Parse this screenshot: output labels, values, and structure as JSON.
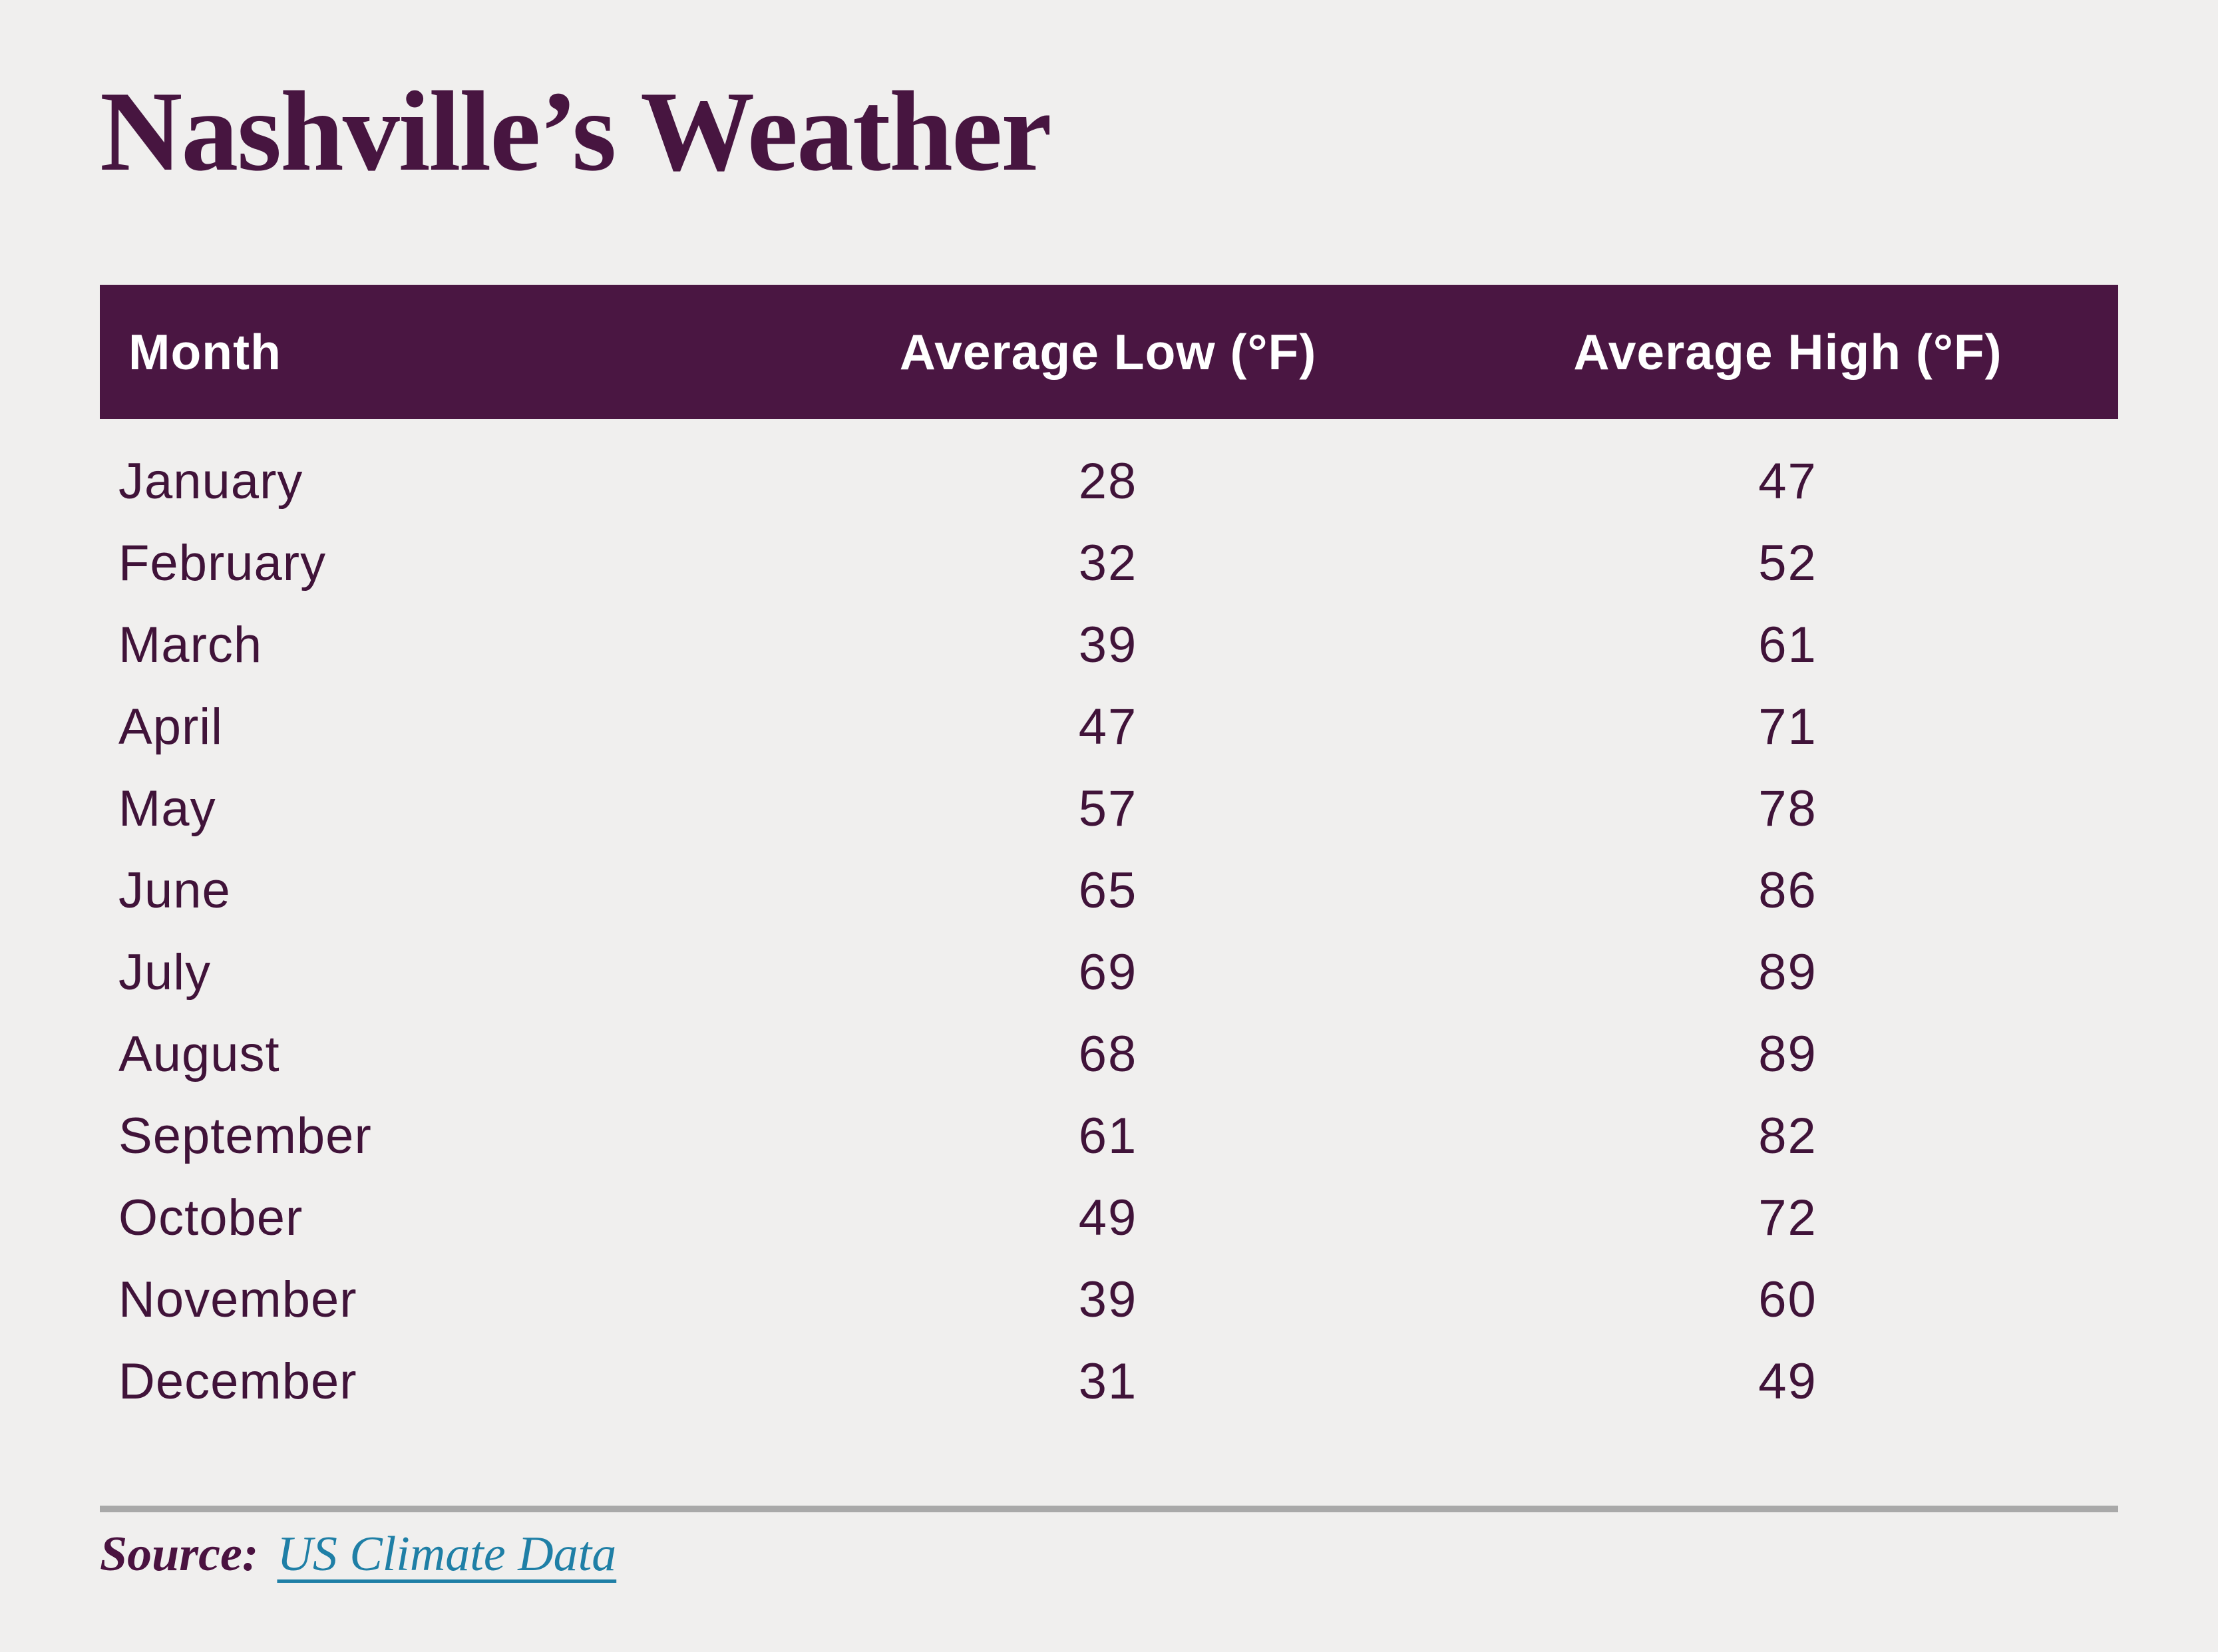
{
  "page": {
    "background": "#f0efee"
  },
  "title": {
    "text": "Nashville’s Weather",
    "color": "#471540"
  },
  "table": {
    "header": {
      "background": "#4a1642",
      "text_color": "#ffffff",
      "columns": [
        "Month",
        "Average Low (°F)",
        "Average High (°F)"
      ]
    },
    "row_text_color": "#401339",
    "rows": [
      {
        "month": "January",
        "low": "28",
        "high": "47"
      },
      {
        "month": "February",
        "low": "32",
        "high": "52"
      },
      {
        "month": "March",
        "low": "39",
        "high": "61"
      },
      {
        "month": "April",
        "low": "47",
        "high": "71"
      },
      {
        "month": "May",
        "low": "57",
        "high": "78"
      },
      {
        "month": "June",
        "low": "65",
        "high": "86"
      },
      {
        "month": "July",
        "low": "69",
        "high": "89"
      },
      {
        "month": "August",
        "low": "68",
        "high": "89"
      },
      {
        "month": "September",
        "low": "61",
        "high": "82"
      },
      {
        "month": "October",
        "low": "49",
        "high": "72"
      },
      {
        "month": "November",
        "low": "39",
        "high": "60"
      },
      {
        "month": "December",
        "low": "31",
        "high": "49"
      }
    ]
  },
  "divider": {
    "color": "#a9a9a9"
  },
  "source": {
    "label": "Source:",
    "label_color": "#4a1240",
    "link_text": "US Climate Data",
    "link_color": "#1f7fa6"
  },
  "chart_data": {
    "type": "table",
    "title": "Nashville’s Weather",
    "columns": [
      "Month",
      "Average Low (°F)",
      "Average High (°F)"
    ],
    "rows": [
      [
        "January",
        28,
        47
      ],
      [
        "February",
        32,
        52
      ],
      [
        "March",
        39,
        61
      ],
      [
        "April",
        47,
        71
      ],
      [
        "May",
        57,
        78
      ],
      [
        "June",
        65,
        86
      ],
      [
        "July",
        69,
        89
      ],
      [
        "August",
        68,
        89
      ],
      [
        "September",
        61,
        82
      ],
      [
        "October",
        49,
        72
      ],
      [
        "November",
        39,
        60
      ],
      [
        "December",
        31,
        49
      ]
    ],
    "source": "US Climate Data",
    "legend_position": "none",
    "grid": false
  }
}
